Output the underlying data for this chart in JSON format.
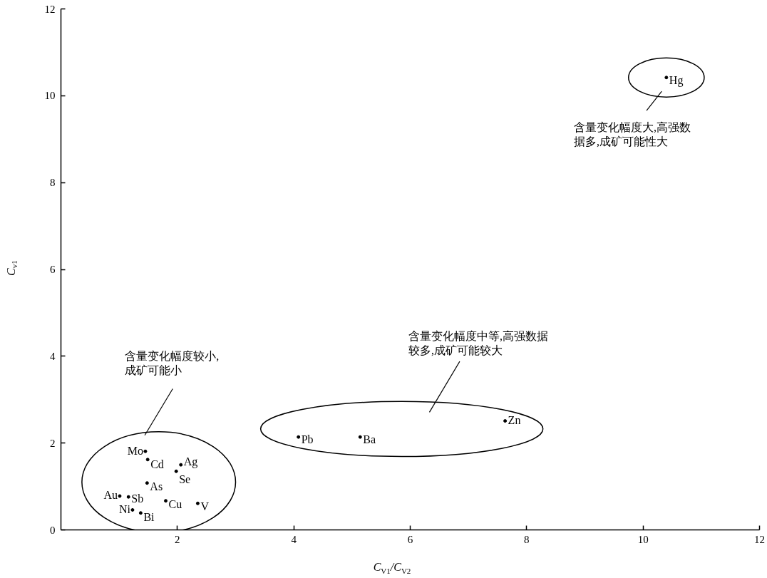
{
  "chart_data": {
    "type": "scatter",
    "xlabel": "C$_{V1}$/C$_{V2}$",
    "ylabel": "C$_{v1}$",
    "xlim": [
      0,
      12
    ],
    "ylim": [
      0,
      12
    ],
    "xticks": [
      2,
      4,
      6,
      8,
      10,
      12
    ],
    "yticks": [
      0,
      2,
      4,
      6,
      8,
      10,
      12
    ],
    "marker": "circle",
    "series": [
      {
        "color": "#000000",
        "x": [
          1.45,
          1.49,
          2.06,
          1.98,
          1.48,
          1.01,
          1.16,
          1.8,
          2.35,
          1.23,
          1.37
        ],
        "values": [
          1.81,
          1.62,
          1.5,
          1.35,
          1.08,
          0.78,
          0.76,
          0.67,
          0.61,
          0.46,
          0.39
        ],
        "value_labels": [
          "Mo",
          "Cd",
          "Ag",
          "Se",
          "As",
          "Au",
          "Sb",
          "Cu",
          "V",
          "Ni",
          "Bi"
        ]
      },
      {
        "color": "#000000",
        "x": [
          4.08,
          5.14,
          7.63
        ],
        "values": [
          2.14,
          2.14,
          2.51
        ],
        "value_labels": [
          "Pb",
          "Ba",
          "Zn"
        ]
      },
      {
        "color": "#000000",
        "x": [
          10.4
        ],
        "values": [
          10.42
        ],
        "value_labels": [
          "Hg"
        ]
      }
    ],
    "annotations": [
      "含量变化幅度较小,成矿可能小",
      "含量变化幅度中等,高强数据较多,成矿可能较大",
      "含量变化幅度大,高强数据多,成矿可能性大"
    ]
  }
}
